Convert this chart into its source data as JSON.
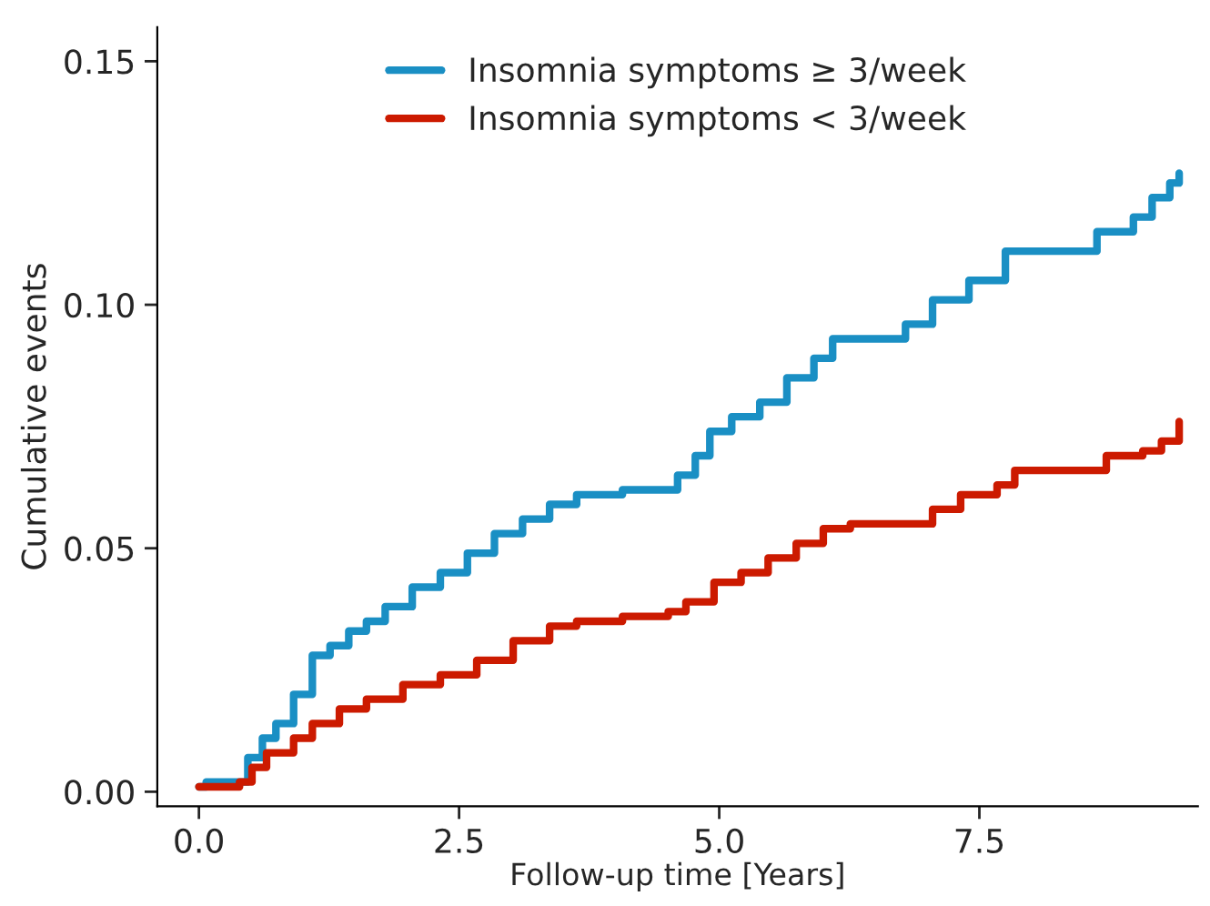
{
  "chart_data": {
    "type": "step",
    "xlabel": "Follow-up time [Years]",
    "ylabel": "Cumulative events",
    "xlim": [
      -0.4,
      9.6
    ],
    "xticks": [
      {
        "value": 0,
        "label": "0.0"
      },
      2.5,
      {
        "value": 5,
        "label": "5.0"
      },
      7.5
    ],
    "ylim": [
      -0.003,
      0.157
    ],
    "yticks": [
      {
        "value": 0,
        "label": "0.00"
      },
      0.05,
      {
        "value": 0.1,
        "label": "0.10"
      },
      0.15
    ],
    "grid": false,
    "legend": "top",
    "line_style": "solid",
    "marker": "none",
    "series": [
      {
        "name": "Insomnia symptoms ≥ 3/week",
        "color": "#1a8fc4",
        "x": [
          0,
          0.07,
          0.39,
          0.47,
          0.61,
          0.74,
          0.91,
          1.09,
          1.26,
          1.44,
          1.61,
          1.79,
          2.05,
          2.32,
          2.58,
          2.84,
          3.11,
          3.37,
          3.63,
          4.07,
          4.54,
          4.6,
          4.77,
          4.91,
          5.12,
          5.39,
          5.65,
          5.91,
          6.09,
          6.61,
          6.79,
          7.05,
          7.4,
          7.75,
          8.37,
          8.63,
          8.98,
          9.16,
          9.33,
          9.42
        ],
        "values": [
          0.001,
          0.002,
          0.002,
          0.007,
          0.011,
          0.014,
          0.02,
          0.028,
          0.03,
          0.033,
          0.035,
          0.038,
          0.042,
          0.045,
          0.049,
          0.053,
          0.056,
          0.059,
          0.061,
          0.062,
          0.062,
          0.065,
          0.069,
          0.074,
          0.077,
          0.08,
          0.085,
          0.089,
          0.093,
          0.093,
          0.096,
          0.101,
          0.105,
          0.111,
          0.111,
          0.115,
          0.118,
          0.122,
          0.125,
          0.127
        ]
      },
      {
        "name": "Insomnia symptoms < 3/week",
        "color": "#cc1a00",
        "x": [
          0,
          0.39,
          0.51,
          0.65,
          0.91,
          1.09,
          1.35,
          1.61,
          1.96,
          2.32,
          2.67,
          3.02,
          3.37,
          3.63,
          4.07,
          4.51,
          4.68,
          4.95,
          5.21,
          5.47,
          5.74,
          6.0,
          6.26,
          6.79,
          7.05,
          7.32,
          7.67,
          7.84,
          8.46,
          8.72,
          9.07,
          9.25,
          9.42
        ],
        "values": [
          0.001,
          0.002,
          0.005,
          0.008,
          0.011,
          0.014,
          0.017,
          0.019,
          0.022,
          0.024,
          0.027,
          0.031,
          0.034,
          0.035,
          0.036,
          0.037,
          0.039,
          0.043,
          0.045,
          0.048,
          0.051,
          0.054,
          0.055,
          0.055,
          0.058,
          0.061,
          0.063,
          0.066,
          0.066,
          0.069,
          0.07,
          0.072,
          0.076
        ]
      }
    ]
  }
}
